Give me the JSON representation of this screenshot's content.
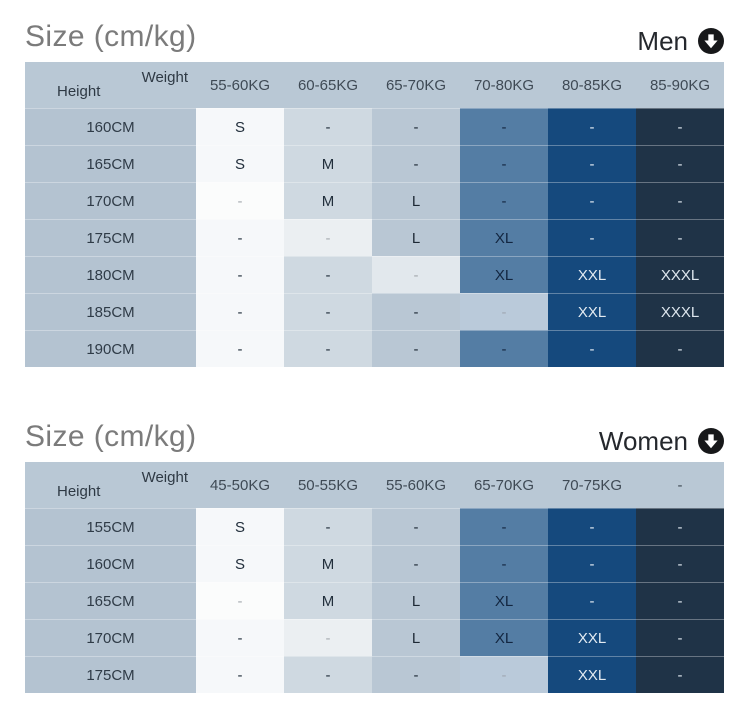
{
  "palette": {
    "page_bg": "#ffffff",
    "title_text": "#7b7b7b",
    "group_label_text": "#25282d",
    "icon_fill": "#17181a",
    "icon_glyph": "#ffffff",
    "header_row_bg": "#b9c8d5",
    "header_text": "#3f4a55",
    "corner_text": "#2e3944",
    "height_col_bg": "#b4c3d1",
    "row_label_text": "#2f3b47",
    "column_colors": [
      "#f6f8fa",
      "#cfd9e1",
      "#b9c7d4",
      "#547da4",
      "#15497d",
      "#1f3347"
    ],
    "column_text_colors": [
      "#222f3c",
      "#222f3c",
      "#1d2935",
      "#132640",
      "#e3ebf2",
      "#dde6ee"
    ],
    "row_divider": "rgba(255,255,255,0.32)"
  },
  "chart_data": [
    {
      "type": "table",
      "title": "Size (cm/kg)",
      "group_label": "Men",
      "icon": "down-arrow-circle",
      "corner": {
        "height_label": "Height",
        "weight_label": "Weight"
      },
      "columns": [
        "55-60KG",
        "60-65KG",
        "65-70KG",
        "70-80KG",
        "80-85KG",
        "85-90KG"
      ],
      "rows": [
        {
          "height": "160CM",
          "cells": [
            "S",
            "-",
            "-",
            "-",
            "-",
            "-"
          ]
        },
        {
          "height": "165CM",
          "cells": [
            "S",
            "M",
            "-",
            "-",
            "-",
            "-"
          ]
        },
        {
          "height": "170CM",
          "cells": [
            "-",
            "M",
            "L",
            "-",
            "-",
            "-"
          ]
        },
        {
          "height": "175CM",
          "cells": [
            "-",
            "-",
            "L",
            "XL",
            "-",
            "-"
          ]
        },
        {
          "height": "180CM",
          "cells": [
            "-",
            "-",
            "-",
            "XL",
            "XXL",
            "XXXL"
          ]
        },
        {
          "height": "185CM",
          "cells": [
            "-",
            "-",
            "-",
            "-",
            "XXL",
            "XXXL"
          ]
        },
        {
          "height": "190CM",
          "cells": [
            "-",
            "-",
            "-",
            "-",
            "-",
            "-"
          ]
        }
      ],
      "muted_cells": [
        [
          2,
          0
        ],
        [
          3,
          1
        ],
        [
          4,
          2
        ],
        [
          5,
          3
        ]
      ]
    },
    {
      "type": "table",
      "title": "Size (cm/kg)",
      "group_label": "Women",
      "icon": "down-arrow-circle",
      "corner": {
        "height_label": "Height",
        "weight_label": "Weight"
      },
      "columns": [
        "45-50KG",
        "50-55KG",
        "55-60KG",
        "65-70KG",
        "70-75KG",
        "-"
      ],
      "rows": [
        {
          "height": "155CM",
          "cells": [
            "S",
            "-",
            "-",
            "-",
            "-",
            "-"
          ]
        },
        {
          "height": "160CM",
          "cells": [
            "S",
            "M",
            "-",
            "-",
            "-",
            "-"
          ]
        },
        {
          "height": "165CM",
          "cells": [
            "-",
            "M",
            "L",
            "XL",
            "-",
            "-"
          ]
        },
        {
          "height": "170CM",
          "cells": [
            "-",
            "-",
            "L",
            "XL",
            "XXL",
            "-"
          ]
        },
        {
          "height": "175CM",
          "cells": [
            "-",
            "-",
            "-",
            "-",
            "XXL",
            "-"
          ]
        }
      ],
      "muted_cells": [
        [
          2,
          0
        ],
        [
          3,
          1
        ],
        [
          4,
          3
        ]
      ]
    }
  ]
}
